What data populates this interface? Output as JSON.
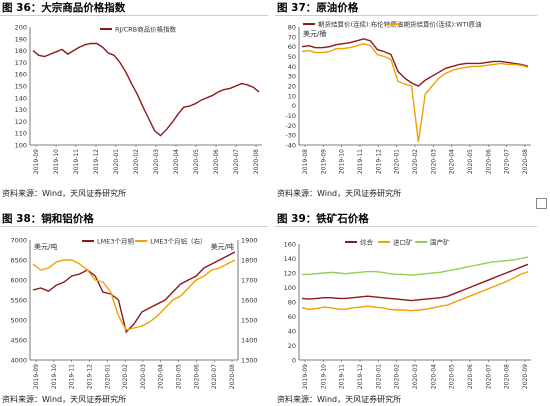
{
  "panels": [
    {
      "title": "图 36：大宗商品价格指数",
      "source": "资料来源：Wind，天风证券研究所"
    },
    {
      "title": "图 37：原油价格",
      "source": "资料来源：Wind，天风证券研究所"
    },
    {
      "title": "图 38：铜和铝价格",
      "source": "资料来源：Wind，天风证券研究所"
    },
    {
      "title": "图 39：铁矿石价格",
      "source": "资料来源：Wind，天风证券研究所"
    }
  ],
  "chart_data": [
    {
      "type": "line",
      "title": "",
      "ylim": [
        100,
        200
      ],
      "yticks": [
        "200",
        "190",
        "180",
        "170",
        "160",
        "150",
        "140",
        "130",
        "120",
        "110",
        "100"
      ],
      "xticks": [
        "2019-09",
        "2019-10",
        "2019-11",
        "2019-12",
        "2020-01",
        "2020-02",
        "2020-03",
        "2020-04",
        "2020-05",
        "2020-06",
        "2020-07",
        "2020-08"
      ],
      "series": [
        {
          "name": "RJ/CRB商品价格指数",
          "color": "#8B1A1A",
          "values": [
            180,
            176,
            175,
            177,
            179,
            181,
            177,
            180,
            183,
            185,
            186,
            186,
            183,
            178,
            176,
            170,
            162,
            152,
            143,
            132,
            122,
            112,
            108,
            113,
            119,
            126,
            132,
            133,
            135,
            138,
            140,
            142,
            145,
            147,
            148,
            150,
            152,
            151,
            149,
            145
          ]
        }
      ]
    },
    {
      "type": "line",
      "title": "",
      "unit": "美元/桶",
      "ylim": [
        -40,
        80
      ],
      "yticks": [
        "80",
        "70",
        "60",
        "50",
        "40",
        "30",
        "20",
        "10",
        "0",
        "-10",
        "-20",
        "-30",
        "-40"
      ],
      "xticks": [
        "2019-08",
        "2019-09",
        "2019-10",
        "2019-11",
        "2019-12",
        "2020-01",
        "2020-02",
        "2020-03",
        "2020-04",
        "2020-05",
        "2020-06",
        "2020-07",
        "2020-08"
      ],
      "series": [
        {
          "name": "期货结算价(连续):布伦特原油",
          "color": "#8B1A1A",
          "values": [
            60,
            61,
            59,
            59,
            60,
            62,
            63,
            64,
            66,
            68,
            66,
            57,
            55,
            52,
            35,
            28,
            23,
            20,
            26,
            30,
            34,
            38,
            40,
            42,
            43,
            43,
            43,
            44,
            45,
            45,
            44,
            43,
            42,
            40
          ]
        },
        {
          "name": "期货结算价(连续):WTI原油",
          "color": "#F0A000",
          "values": [
            55,
            56,
            54,
            54,
            55,
            58,
            58,
            59,
            61,
            63,
            61,
            52,
            50,
            47,
            25,
            22,
            20,
            -37,
            12,
            20,
            28,
            33,
            36,
            38,
            39,
            40,
            40,
            41,
            42,
            43,
            42,
            42,
            41,
            39
          ]
        }
      ]
    },
    {
      "type": "line",
      "title": "",
      "unit_left": "美元/吨",
      "unit_right": "美元/吨",
      "ylim_left": [
        4000,
        7000
      ],
      "ylim_right": [
        1300,
        1900
      ],
      "yticks_left": [
        "7000",
        "6500",
        "6000",
        "5500",
        "5000",
        "4500",
        "4000"
      ],
      "yticks_right": [
        "1900",
        "1800",
        "1700",
        "1600",
        "1500",
        "1400",
        "1300"
      ],
      "xticks": [
        "2019-09",
        "2019-10",
        "2019-11",
        "2019-12",
        "2020-01",
        "2020-02",
        "2020-03",
        "2020-04",
        "2020-05",
        "2020-06",
        "2020-07",
        "2020-08"
      ],
      "series": [
        {
          "name": "LME3个月铜",
          "axis": "left",
          "color": "#8B1A1A",
          "values": [
            5750,
            5800,
            5720,
            5870,
            5950,
            6100,
            6150,
            6250,
            6100,
            5700,
            5650,
            5500,
            4700,
            4900,
            5200,
            5300,
            5400,
            5500,
            5700,
            5900,
            6000,
            6100,
            6300,
            6400,
            6500,
            6600,
            6700
          ]
        },
        {
          "name": "LME3个月铝（右）",
          "axis": "right",
          "color": "#F0A000",
          "values": [
            1780,
            1750,
            1760,
            1790,
            1800,
            1800,
            1780,
            1750,
            1700,
            1690,
            1640,
            1520,
            1450,
            1460,
            1470,
            1490,
            1520,
            1560,
            1600,
            1620,
            1660,
            1700,
            1720,
            1750,
            1760,
            1780,
            1800
          ]
        }
      ]
    },
    {
      "type": "line",
      "title": "",
      "ylim": [
        0,
        160
      ],
      "yticks": [
        "160",
        "140",
        "120",
        "100",
        "80",
        "60",
        "40",
        "20",
        "0"
      ],
      "xticks": [
        "2019-09",
        "2019-10",
        "2019-11",
        "2019-12",
        "2020-01",
        "2020-02",
        "2020-03",
        "2020-04",
        "2020-05",
        "2020-06",
        "2020-07",
        "2020-08",
        "2020-09"
      ],
      "series": [
        {
          "name": "综合",
          "color": "#8B1A1A",
          "values": [
            85,
            84,
            85,
            86,
            86,
            85,
            85,
            86,
            87,
            88,
            87,
            86,
            85,
            84,
            83,
            82,
            83,
            84,
            85,
            86,
            88,
            92,
            96,
            100,
            104,
            108,
            112,
            116,
            120,
            124,
            128,
            132
          ]
        },
        {
          "name": "进口矿",
          "color": "#F0A000",
          "values": [
            72,
            70,
            71,
            73,
            72,
            70,
            70,
            72,
            73,
            74,
            73,
            72,
            70,
            69,
            69,
            68,
            69,
            70,
            72,
            74,
            76,
            80,
            84,
            88,
            92,
            96,
            100,
            104,
            108,
            113,
            118,
            122
          ]
        },
        {
          "name": "国产矿",
          "color": "#92D050",
          "values": [
            118,
            118,
            119,
            120,
            121,
            120,
            119,
            120,
            121,
            122,
            122,
            121,
            119,
            118,
            118,
            117,
            118,
            119,
            120,
            121,
            123,
            125,
            127,
            129,
            131,
            133,
            135,
            136,
            137,
            138,
            140,
            142
          ]
        }
      ]
    }
  ]
}
